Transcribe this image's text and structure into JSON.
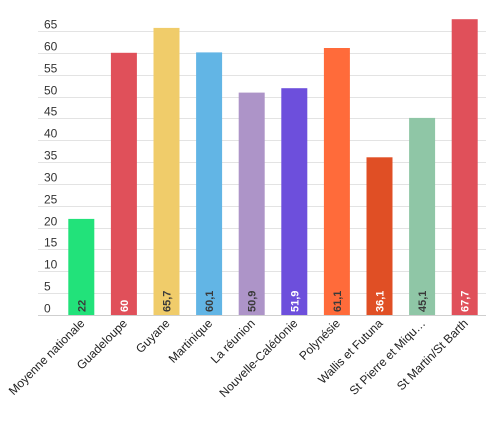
{
  "chart_data": {
    "type": "bar",
    "title": "",
    "xlabel": "",
    "ylabel": "",
    "ylim": [
      0,
      65
    ],
    "yticks": [
      0,
      5,
      10,
      15,
      20,
      25,
      30,
      35,
      40,
      45,
      50,
      55,
      60,
      65
    ],
    "grid": true,
    "legend": "none",
    "categories": [
      "Moyenne nationale",
      "Guadeloupe",
      "Guyane",
      "Martinique",
      "La réunion",
      "Nouvelle-Calédonie",
      "Polynésie",
      "Wallis et Futuna",
      "St Pierre et Miqu…",
      "St Martin/St Barth"
    ],
    "values": [
      22,
      60,
      65.7,
      60.1,
      50.9,
      51.9,
      61.1,
      36.1,
      45.1,
      67.7
    ],
    "data_labels": [
      "22",
      "60",
      "65,7",
      "60,1",
      "50,9",
      "51,9",
      "61,1",
      "36,1",
      "45,1",
      "67,7"
    ],
    "colors": [
      "#22e27a",
      "#e0505a",
      "#f0cc6a",
      "#62b5e5",
      "#ad94c8",
      "#6d4fdc",
      "#ff6b3a",
      "#e04f25",
      "#8fc6a6",
      "#e0505a"
    ],
    "label_colors": [
      "#3a3a3a",
      "#ffffff",
      "#3a3a3a",
      "#3a3a3a",
      "#3a3a3a",
      "#ffffff",
      "#3a3a3a",
      "#ffffff",
      "#3a3a3a",
      "#ffffff"
    ]
  }
}
